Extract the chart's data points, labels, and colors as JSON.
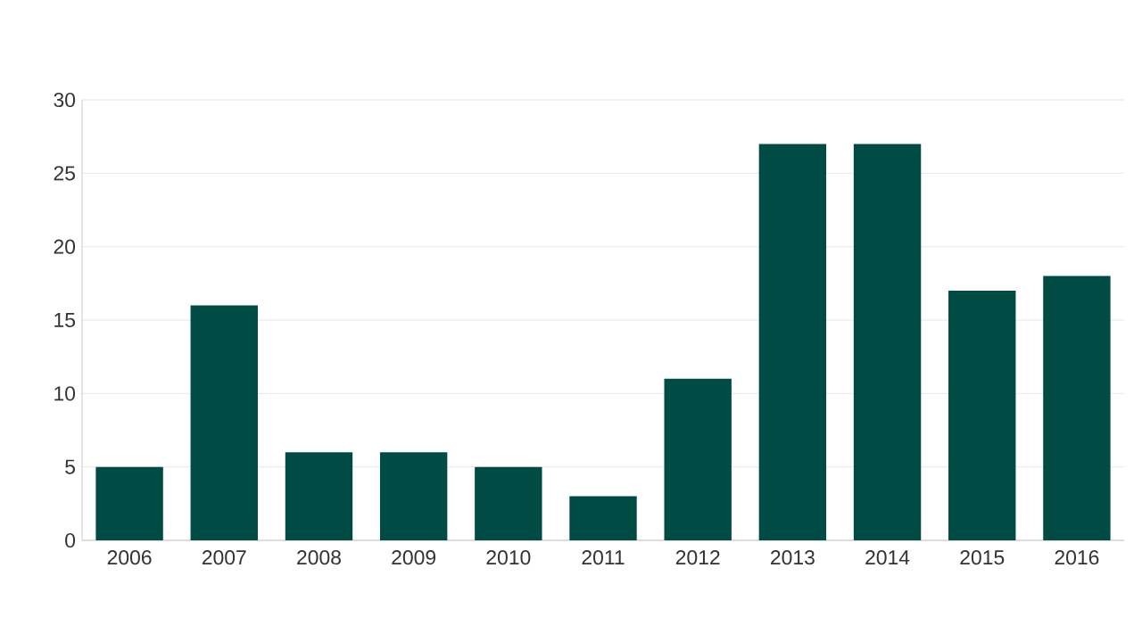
{
  "chart_data": {
    "type": "bar",
    "categories": [
      "2006",
      "2007",
      "2008",
      "2009",
      "2010",
      "2011",
      "2012",
      "2013",
      "2014",
      "2015",
      "2016"
    ],
    "values": [
      5,
      16,
      6,
      6,
      5,
      3,
      11,
      27,
      27,
      17,
      18
    ],
    "color": "#004c45",
    "ylim": [
      0,
      30
    ],
    "yticks": [
      0,
      5,
      10,
      15,
      20,
      25,
      30
    ],
    "grid": "y"
  }
}
